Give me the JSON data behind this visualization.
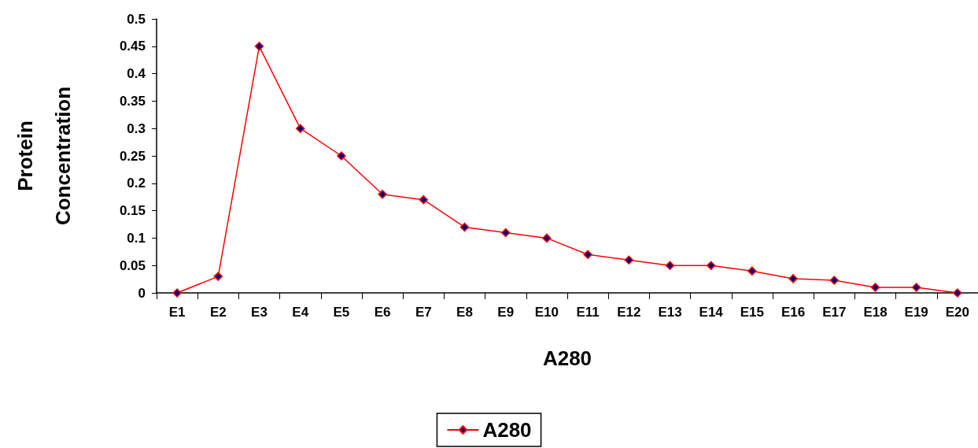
{
  "chart_data": {
    "type": "line",
    "xlabel": "A280",
    "ylabel": "Protein\nConcentration",
    "categories": [
      "E1",
      "E2",
      "E3",
      "E4",
      "E5",
      "E6",
      "E7",
      "E8",
      "E9",
      "E10",
      "E11",
      "E12",
      "E13",
      "E14",
      "E15",
      "E16",
      "E17",
      "E18",
      "E19",
      "E20"
    ],
    "series": [
      {
        "name": "A280",
        "color": "#ff0000",
        "values": [
          0,
          0.03,
          0.45,
          0.3,
          0.25,
          0.18,
          0.17,
          0.12,
          0.11,
          0.1,
          0.07,
          0.06,
          0.05,
          0.05,
          0.04,
          0.026,
          0.023,
          0.01,
          0.01,
          0
        ]
      }
    ],
    "ylim": [
      0,
      0.5
    ],
    "yticks": [
      0,
      0.05,
      0.1,
      0.15,
      0.2,
      0.25,
      0.3,
      0.35,
      0.4,
      0.45,
      0.5
    ],
    "grid": false,
    "legend": "bottom",
    "marker": "diamond",
    "line_style": "solid"
  }
}
